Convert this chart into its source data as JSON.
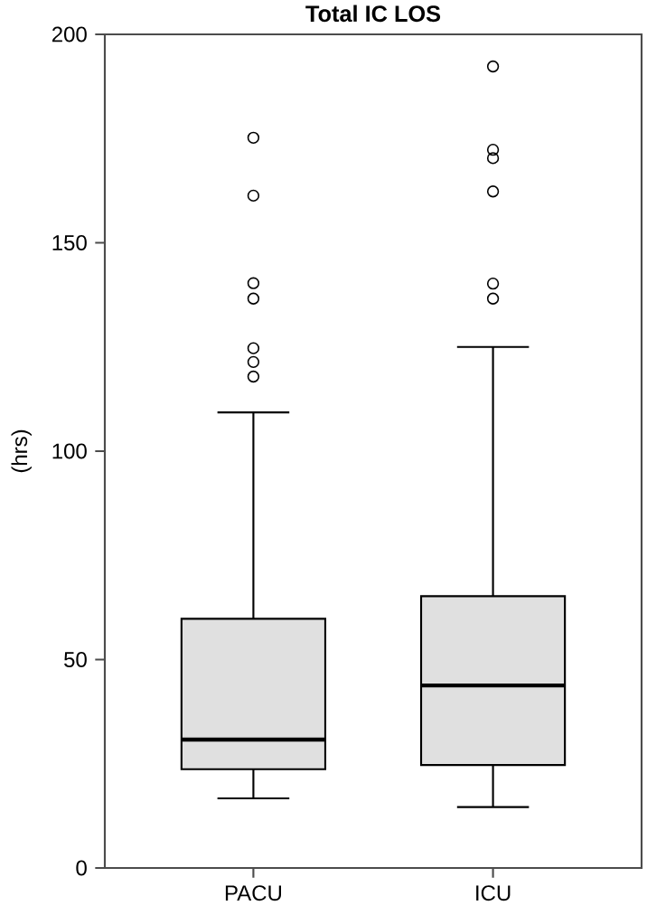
{
  "chart_data": {
    "type": "box",
    "title": "Total IC LOS",
    "ylabel": "(hrs)",
    "categories": [
      "PACU",
      "ICU"
    ],
    "color": "#e0e0e0",
    "boxes": [
      {
        "low": 16.7,
        "q1": 23.7,
        "median": 30.8,
        "q3": 59.8,
        "high": 109.3,
        "outliers": [
          117.9,
          121.4,
          124.7,
          136.6,
          140.3,
          161.3,
          175.2
        ]
      },
      {
        "low": 14.6,
        "q1": 24.7,
        "median": 43.8,
        "q3": 65.2,
        "high": 125.0,
        "outliers": [
          136.6,
          140.2,
          162.3,
          170.3,
          172.3,
          192.3
        ]
      }
    ],
    "ylim": [
      0,
      200
    ],
    "yticks": [
      0,
      50,
      100,
      150,
      200
    ]
  }
}
